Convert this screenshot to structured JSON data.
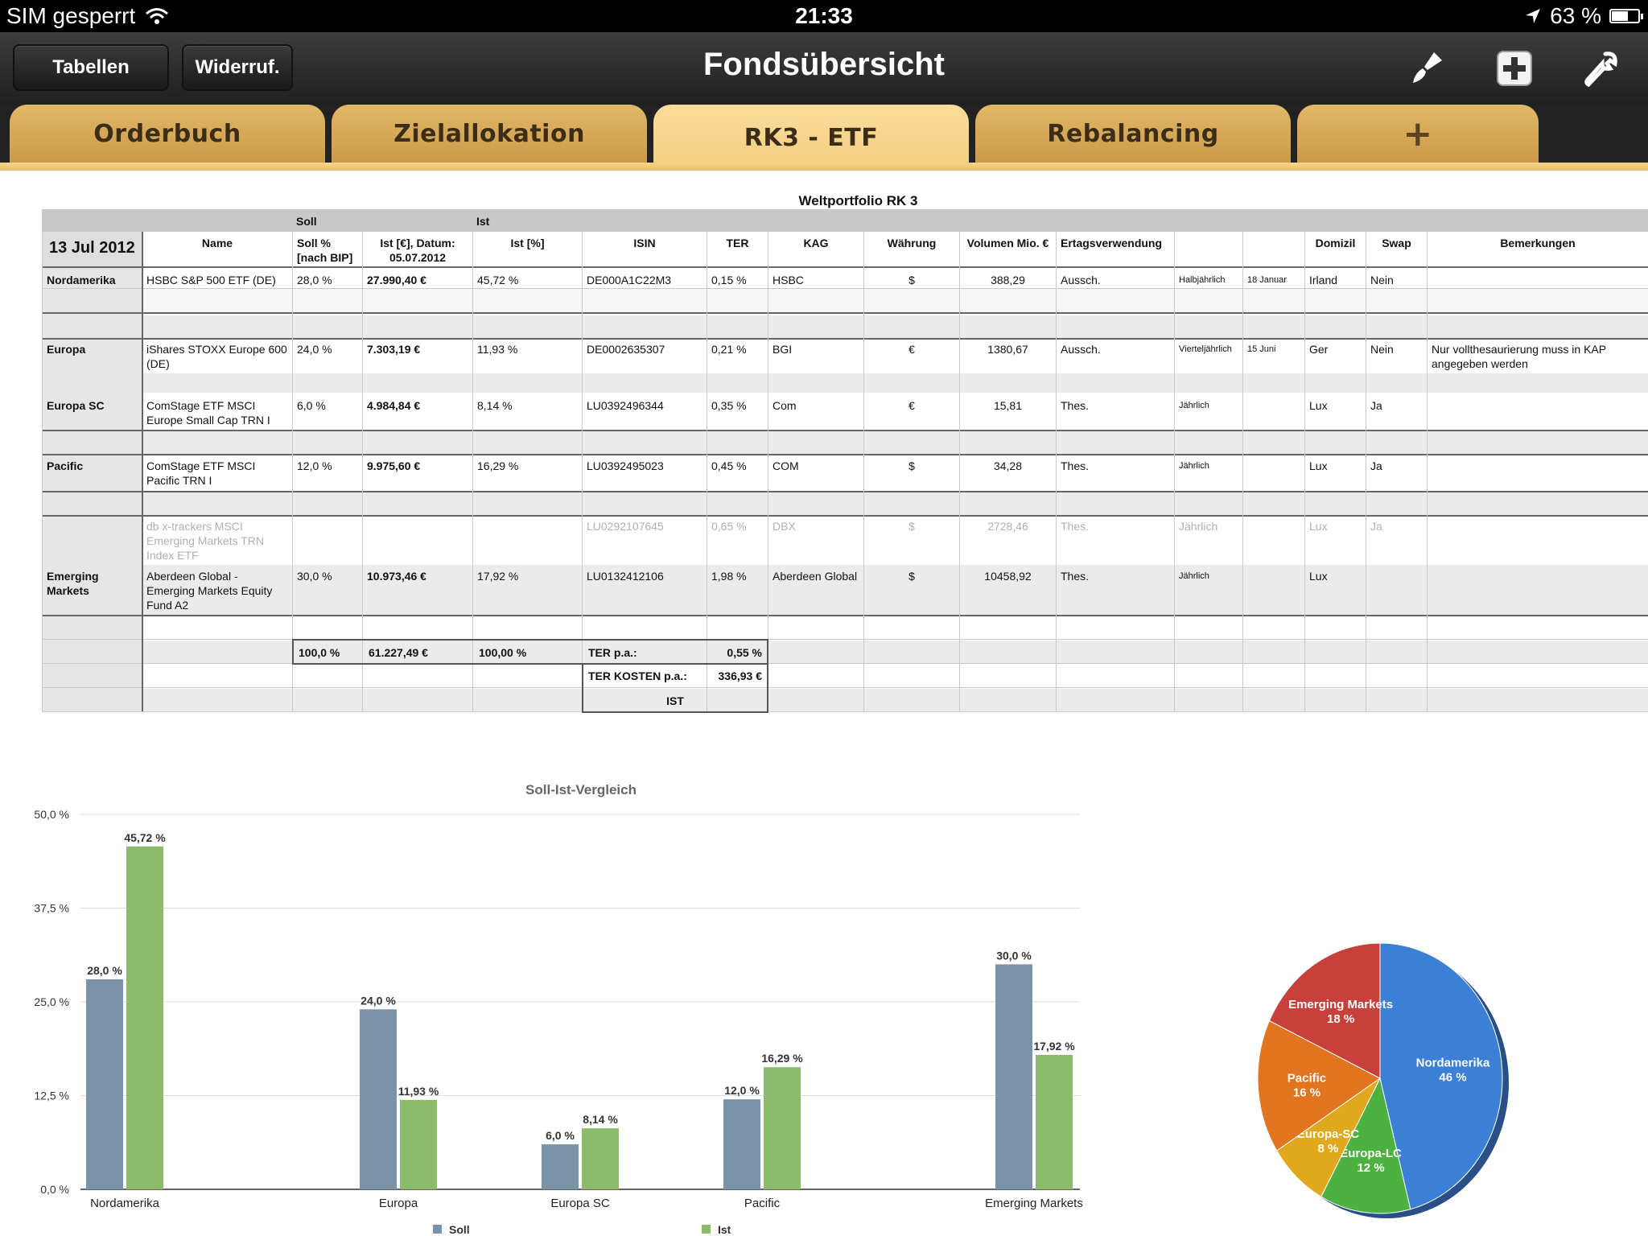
{
  "status": {
    "carrier": "SIM gesperrt",
    "time": "21:33",
    "battery": "63 %",
    "battery_level": 0.63
  },
  "toolbar": {
    "btn_tables": "Tabellen",
    "btn_undo": "Widerruf.",
    "title": "Fondsübersicht"
  },
  "tabs": [
    {
      "label": "Orderbuch"
    },
    {
      "label": "Zielallokation"
    },
    {
      "label": "RK3 - ETF",
      "active": true
    },
    {
      "label": "Rebalancing"
    },
    {
      "label": "+"
    }
  ],
  "sheet": {
    "title": "Weltportfolio RK 3",
    "group_soll": "Soll",
    "group_ist": "Ist",
    "date": "13 Jul 2012",
    "headers": {
      "name": "Name",
      "soll_pct": "Soll % [nach BIP]",
      "ist_eur": "Ist [€], Datum: 05.07.2012",
      "ist_pct": "Ist [%]",
      "isin": "ISIN",
      "ter": "TER",
      "kag": "KAG",
      "currency": "Währung",
      "volume": "Volumen Mio. €",
      "yield_use": "Ertagsverwendung",
      "domicile": "Domizil",
      "swap": "Swap",
      "remarks": "Bemerkungen"
    },
    "rows": [
      {
        "region": "Nordamerika",
        "name": "HSBC S&P 500 ETF (DE)",
        "soll": "28,0 %",
        "ist_eur": "27.990,40 €",
        "ist_pct": "45,72 %",
        "isin": "DE000A1C22M3",
        "ter": "0,15 %",
        "kag": "HSBC",
        "currency": "$",
        "volume": "388,29",
        "yield_use": "Aussch.",
        "freq": "Halbjährlich",
        "month": "18 Januar",
        "domicile": "Irland",
        "swap": "Nein",
        "remarks": ""
      },
      {
        "region": "Europa",
        "name": "iShares STOXX Europe 600 (DE)",
        "soll": "24,0 %",
        "ist_eur": "7.303,19 €",
        "ist_pct": "11,93 %",
        "isin": "DE0002635307",
        "ter": "0,21 %",
        "kag": "BGI",
        "currency": "€",
        "volume": "1380,67",
        "yield_use": "Aussch.",
        "freq": "Vierteljährlich",
        "month": "15 Juni",
        "domicile": "Ger",
        "swap": "Nein",
        "remarks": "Nur vollthesaurierung muss in KAP angegeben werden"
      },
      {
        "region": "Europa SC",
        "name": "ComStage ETF MSCI Europe Small Cap TRN I",
        "soll": "6,0 %",
        "ist_eur": "4.984,84 €",
        "ist_pct": "8,14 %",
        "isin": "LU0392496344",
        "ter": "0,35 %",
        "kag": "Com",
        "currency": "€",
        "volume": "15,81",
        "yield_use": "Thes.",
        "freq": "Jährlich",
        "month": "",
        "domicile": "Lux",
        "swap": "Ja",
        "remarks": ""
      },
      {
        "region": "Pacific",
        "name": "ComStage ETF MSCI Pacific TRN I",
        "soll": "12,0 %",
        "ist_eur": "9.975,60 €",
        "ist_pct": "16,29 %",
        "isin": "LU0392495023",
        "ter": "0,45 %",
        "kag": "COM",
        "currency": "$",
        "volume": "34,28",
        "yield_use": "Thes.",
        "freq": "Jährlich",
        "month": "",
        "domicile": "Lux",
        "swap": "Ja",
        "remarks": ""
      },
      {
        "region": "",
        "name": "db x-trackers MSCI Emerging Markets TRN Index ETF",
        "soll": "",
        "ist_eur": "",
        "ist_pct": "",
        "isin": "LU0292107645",
        "ter": "0,65 %",
        "kag": "DBX",
        "currency": "$",
        "volume": "2728,46",
        "yield_use": "Thes.",
        "freq": "Jährlich",
        "month": "",
        "domicile": "Lux",
        "swap": "Ja",
        "remarks": "",
        "dim": true
      },
      {
        "region": "Emerging Markets",
        "name": "Aberdeen Global - Emerging Markets Equity Fund A2",
        "soll": "30,0 %",
        "ist_eur": "10.973,46 €",
        "ist_pct": "17,92 %",
        "isin": "LU0132412106",
        "ter": "1,98 %",
        "kag": "Aberdeen Global",
        "currency": "$",
        "volume": "10458,92",
        "yield_use": "Thes.",
        "freq": "Jährlich",
        "month": "",
        "domicile": "Lux",
        "swap": "",
        "remarks": ""
      }
    ],
    "totals": {
      "soll": "100,0 %",
      "ist_eur": "61.227,49 €",
      "ist_pct": "100,00 %",
      "ter_label": "TER p.a.:",
      "ter_value": "0,55 %",
      "cost_label": "TER KOSTEN p.a.:",
      "cost_value": "336,93 €",
      "ist_label": "IST"
    }
  },
  "chart_data": [
    {
      "type": "bar",
      "title": "Soll-Ist-Vergleich",
      "categories": [
        "Nordamerika",
        "Europa",
        "Europa SC",
        "Pacific",
        "Emerging Markets"
      ],
      "series": [
        {
          "name": "Soll",
          "values": [
            28.0,
            24.0,
            6.0,
            12.0,
            30.0
          ],
          "labels": [
            "28,0 %",
            "24,0 %",
            "6,0 %",
            "12,0 %",
            "30,0 %"
          ],
          "color": "#7b93a8"
        },
        {
          "name": "Ist",
          "values": [
            45.72,
            11.93,
            8.14,
            16.29,
            17.92
          ],
          "labels": [
            "45,72 %",
            "11,93 %",
            "8,14 %",
            "16,29 %",
            "17,92 %"
          ],
          "color": "#8cbb6b"
        }
      ],
      "ylim": [
        0,
        50
      ],
      "yticks": [
        "0,0 %",
        "12,5 %",
        "25,0 %",
        "37,5 %",
        "50,0 %"
      ],
      "ytick_values": [
        0,
        12.5,
        25,
        37.5,
        50
      ],
      "grid": true,
      "legend": "bottom"
    },
    {
      "type": "pie",
      "slices": [
        {
          "name": "Nordamerika",
          "label": "46 %",
          "value": 46,
          "color": "#3b80d6"
        },
        {
          "name": "Europa-LC",
          "label": "12 %",
          "value": 12,
          "color": "#4db13f"
        },
        {
          "name": "Europa-SC",
          "label": "8 %",
          "value": 8,
          "color": "#e0a81c"
        },
        {
          "name": "Pacific",
          "label": "16 %",
          "value": 16,
          "color": "#e0741f"
        },
        {
          "name": "Emerging Markets",
          "label": "18 %",
          "value": 18,
          "color": "#c8403a"
        }
      ]
    }
  ]
}
